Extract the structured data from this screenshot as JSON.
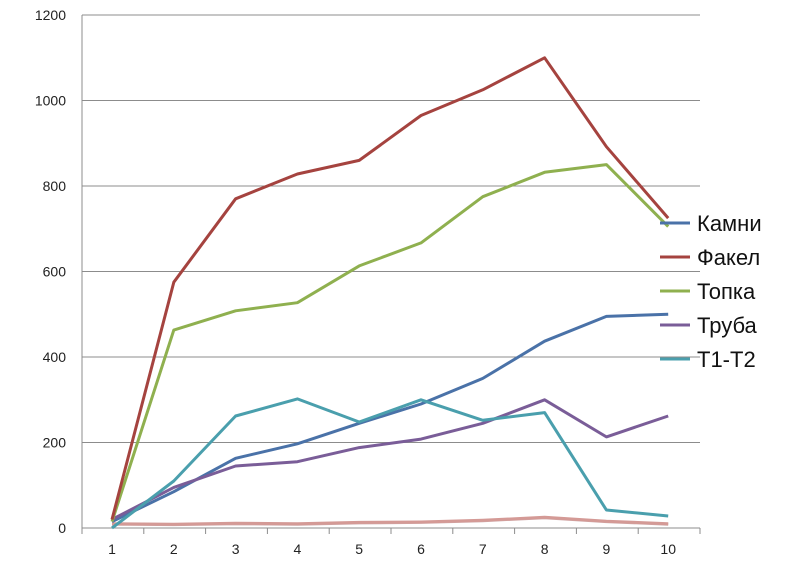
{
  "chart_data": {
    "type": "line",
    "title": "",
    "xlabel": "",
    "ylabel": "",
    "x": [
      1,
      2,
      3,
      4,
      5,
      6,
      7,
      8,
      9,
      10
    ],
    "x_labels": [
      "1",
      "2",
      "3",
      "4",
      "5",
      "6",
      "7",
      "8",
      "9",
      "10"
    ],
    "ylim": [
      0,
      1200
    ],
    "y_ticks": [
      0,
      200,
      400,
      600,
      800,
      1000,
      1200
    ],
    "y_tick_labels": [
      "0",
      "200",
      "400",
      "600",
      "800",
      "1000",
      "1200"
    ],
    "grid": "horizontal",
    "legend_position": "right",
    "series": [
      {
        "name": "Камни",
        "color": "#4a72a8",
        "values": [
          15,
          85,
          163,
          197,
          245,
          290,
          350,
          437,
          495,
          500
        ]
      },
      {
        "name": "Факел",
        "color": "#a5433f",
        "values": [
          20,
          575,
          770,
          828,
          860,
          965,
          1025,
          1100,
          892,
          725
        ]
      },
      {
        "name": "Топка",
        "color": "#8fb04f",
        "values": [
          15,
          463,
          508,
          527,
          613,
          667,
          775,
          832,
          850,
          705
        ]
      },
      {
        "name": "Труба",
        "color": "#7a5d98",
        "values": [
          20,
          95,
          145,
          155,
          188,
          208,
          245,
          300,
          213,
          262
        ]
      },
      {
        "name": "T1-T2",
        "color": "#4a9fad",
        "values": [
          0,
          110,
          262,
          302,
          248,
          300,
          252,
          270,
          42,
          28
        ]
      },
      {
        "name": "",
        "color": "#d49a96",
        "values": [
          10,
          9,
          11,
          10,
          13,
          14,
          18,
          25,
          16,
          10
        ]
      },
      {
        "name": "",
        "color": "#cfa8a8",
        "values": [
          9,
          8,
          10,
          9,
          12,
          13,
          17,
          24,
          15,
          9
        ]
      }
    ]
  }
}
